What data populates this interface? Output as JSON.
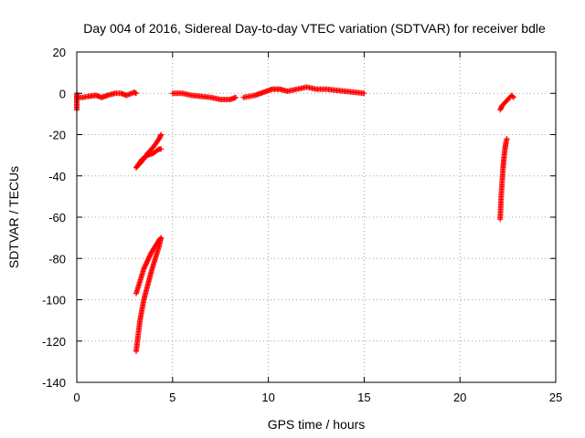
{
  "chart_data": {
    "type": "scatter",
    "title": "Day 004 of 2016, Sidereal Day-to-day VTEC variation (SDTVAR) for receiver bdle",
    "xlabel": "GPS time / hours",
    "ylabel": "SDTVAR / TECUs",
    "xlim": [
      0,
      25
    ],
    "ylim": [
      -140,
      20
    ],
    "x_ticks": [
      0,
      5,
      10,
      15,
      20,
      25
    ],
    "y_ticks": [
      20,
      0,
      -20,
      -40,
      -60,
      -80,
      -100,
      -120,
      -140
    ],
    "grid": true,
    "marker": "+",
    "color": "#ff0000",
    "segments": [
      {
        "x": [
          0.0,
          0.3,
          0.6,
          1.0,
          1.3,
          1.6,
          2.0,
          2.3,
          2.6,
          3.0,
          3.1
        ],
        "y": [
          -2,
          -2,
          -1.5,
          -1,
          -2,
          -1,
          0,
          0,
          -1,
          0.5,
          0
        ]
      },
      {
        "x": [
          0.0,
          0.0,
          0.0
        ],
        "y": [
          0,
          -4,
          -8
        ]
      },
      {
        "x": [
          3.1,
          3.4,
          3.7,
          4.0,
          4.3,
          4.4
        ],
        "y": [
          -36,
          -33,
          -29,
          -26,
          -22,
          -20
        ]
      },
      {
        "x": [
          3.1,
          3.4,
          3.7,
          4.0,
          4.3,
          4.4
        ],
        "y": [
          -36,
          -32,
          -30,
          -29,
          -27,
          -27
        ]
      },
      {
        "x": [
          3.1,
          3.3,
          3.5,
          3.7,
          3.9,
          4.1,
          4.3,
          4.4
        ],
        "y": [
          -97,
          -91,
          -85,
          -81,
          -77,
          -74,
          -71,
          -70
        ]
      },
      {
        "x": [
          3.1,
          3.3,
          3.5,
          3.7,
          3.9,
          4.1,
          4.3,
          4.4
        ],
        "y": [
          -125,
          -110,
          -100,
          -93,
          -86,
          -80,
          -74,
          -70
        ]
      },
      {
        "x": [
          5.0,
          5.5,
          6.0,
          6.5,
          7.0,
          7.5,
          8.0,
          8.3
        ],
        "y": [
          0,
          0,
          -1,
          -1.5,
          -2,
          -3,
          -3,
          -2
        ]
      },
      {
        "x": [
          8.7,
          9.0,
          9.3,
          9.6,
          9.9,
          10.2,
          10.6,
          11.0,
          11.5,
          12.0,
          12.5,
          13.0,
          13.5,
          14.0,
          14.5,
          15.0
        ],
        "y": [
          -2,
          -1.5,
          -1,
          0,
          1,
          2,
          2,
          1,
          2,
          3,
          2,
          2,
          1.5,
          1,
          0.5,
          0
        ]
      },
      {
        "x": [
          22.1,
          22.2,
          22.3,
          22.4,
          22.5,
          22.6,
          22.7,
          22.8
        ],
        "y": [
          -8,
          -6,
          -5,
          -4,
          -3,
          -2,
          -1,
          -2
        ]
      },
      {
        "x": [
          22.1,
          22.15,
          22.2,
          22.25,
          22.3,
          22.35,
          22.4,
          22.45
        ],
        "y": [
          -61,
          -50,
          -43,
          -36,
          -31,
          -27,
          -24,
          -22
        ]
      }
    ]
  }
}
